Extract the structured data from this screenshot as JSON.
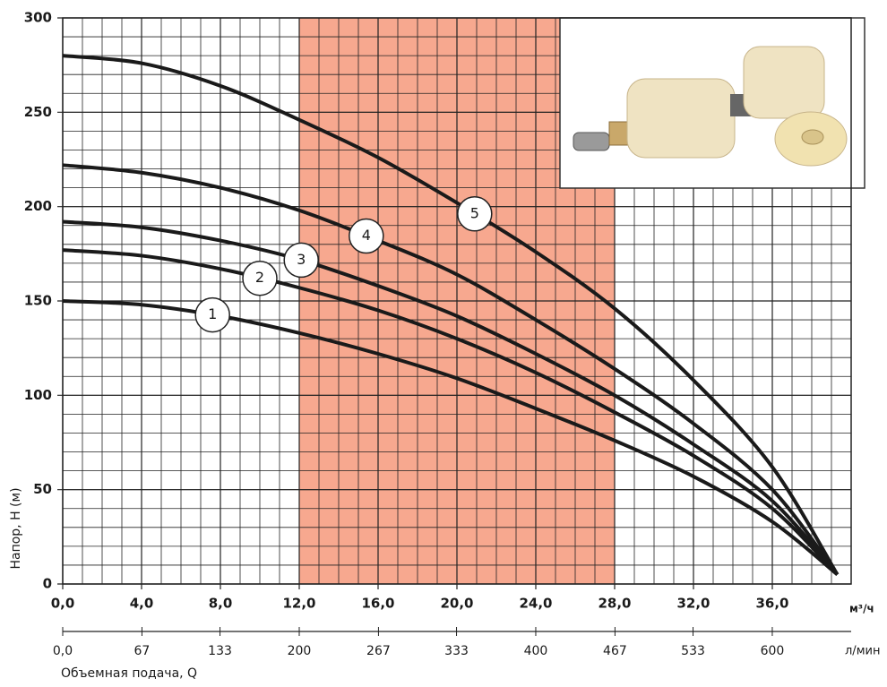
{
  "chart_data": {
    "type": "line",
    "ylabel": "Напор, Н (м)",
    "xlabel": "Объемная подача, Q",
    "xunit": "м³/ч",
    "x2unit": "л/мин",
    "x": [
      0,
      4,
      8,
      12,
      16,
      20,
      24,
      28,
      32,
      36,
      39.3
    ],
    "series": [
      {
        "name": "1",
        "color": "#1a1a1a",
        "values": [
          150,
          148,
          142,
          133,
          122,
          109,
          93,
          76,
          57,
          33,
          5
        ]
      },
      {
        "name": "2",
        "color": "#1a1a1a",
        "values": [
          177,
          174,
          167,
          157,
          145,
          130,
          112,
          91,
          68,
          40,
          5
        ]
      },
      {
        "name": "3",
        "color": "#1a1a1a",
        "values": [
          192,
          189,
          182,
          172,
          158,
          142,
          122,
          100,
          74,
          44,
          5
        ]
      },
      {
        "name": "4",
        "color": "#1a1a1a",
        "values": [
          222,
          218,
          210,
          198,
          182,
          164,
          140,
          114,
          85,
          50,
          5
        ]
      },
      {
        "name": "5",
        "color": "#1a1a1a",
        "values": [
          280,
          276,
          264,
          246,
          226,
          202,
          176,
          146,
          108,
          62,
          5
        ]
      }
    ],
    "highlight": [
      12,
      28
    ],
    "highlight_color": "#f7a88f",
    "xlim": [
      0,
      40
    ],
    "ylim": [
      0,
      300
    ],
    "xticks": [
      {
        "value": 0,
        "label": "0,0"
      },
      {
        "value": 4,
        "label": "4,0"
      },
      {
        "value": 8,
        "label": "8,0"
      },
      {
        "value": 12,
        "label": "12,0"
      },
      {
        "value": 16,
        "label": "16,0"
      },
      {
        "value": 20,
        "label": "20,0"
      },
      {
        "value": 24,
        "label": "24,0"
      },
      {
        "value": 28,
        "label": "28,0"
      },
      {
        "value": 32,
        "label": "32,0"
      },
      {
        "value": 36,
        "label": "36,0"
      }
    ],
    "x2lim": [
      0,
      666.7
    ],
    "x2ticks": [
      {
        "value": 0,
        "label": "0,0"
      },
      67,
      133,
      200,
      267,
      333,
      400,
      467,
      533,
      600
    ],
    "yticks": [
      0,
      50,
      100,
      150,
      200,
      250,
      300
    ],
    "grid": true
  }
}
